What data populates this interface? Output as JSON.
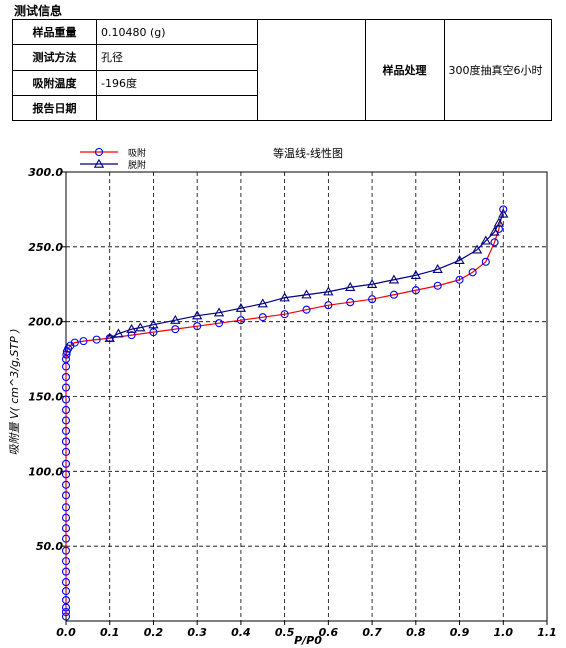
{
  "section_title": "测试信息",
  "info": {
    "rows": [
      {
        "label": "样品重量",
        "value": "0.10480 (g)"
      },
      {
        "label": "测试方法",
        "value": "孔径"
      },
      {
        "label": "吸附温度",
        "value": "-196度"
      },
      {
        "label": "报告日期",
        "value": ""
      }
    ],
    "treatment_label": "样品处理",
    "treatment_value": "300度抽真空6小时"
  },
  "chart_data": {
    "type": "line",
    "title": "等温线-线性图",
    "xlabel": "P/P0",
    "ylabel": "吸附量 V( cm^3/g,STP )",
    "xlim": [
      0.0,
      1.1
    ],
    "ylim": [
      0.0,
      300.0
    ],
    "xticks": [
      0.0,
      0.1,
      0.2,
      0.3,
      0.4,
      0.5,
      0.6,
      0.7,
      0.8,
      0.9,
      1.0,
      1.1
    ],
    "xtick_labels": [
      "0.0",
      "0.1",
      "0.2",
      "0.3",
      "0.4",
      "0.5",
      "0.6",
      "0.7",
      "0.8",
      "0.9",
      "1.0",
      "1.1"
    ],
    "yticks": [
      50.0,
      100.0,
      150.0,
      200.0,
      250.0,
      300.0
    ],
    "ytick_labels": [
      "50.0",
      "100.0",
      "150.0",
      "200.0",
      "250.0",
      "300.0"
    ],
    "grid": true,
    "legend_position": "top-left",
    "series": [
      {
        "name": "吸附",
        "color": "#ff0000",
        "marker": "circle",
        "marker_color": "#0000ff",
        "x": [
          0.0,
          0.0,
          0.0,
          0.0,
          0.0,
          0.0,
          0.0,
          0.0,
          0.0,
          0.0,
          0.0,
          0.0,
          0.0,
          0.0,
          0.0,
          0.0,
          0.0,
          0.0,
          0.0,
          0.0,
          0.0,
          0.0,
          0.0,
          0.0,
          0.0,
          0.0,
          0.0,
          0.001,
          0.002,
          0.005,
          0.01,
          0.02,
          0.04,
          0.07,
          0.1,
          0.15,
          0.2,
          0.25,
          0.3,
          0.35,
          0.4,
          0.45,
          0.5,
          0.55,
          0.6,
          0.65,
          0.7,
          0.75,
          0.8,
          0.85,
          0.9,
          0.93,
          0.96,
          0.98,
          0.99,
          1.0
        ],
        "y": [
          3,
          6,
          9,
          14,
          20,
          26,
          33,
          40,
          47,
          55,
          62,
          69,
          76,
          84,
          91,
          98,
          105,
          113,
          120,
          127,
          134,
          141,
          148,
          156,
          163,
          170,
          175,
          178,
          180,
          182,
          184,
          186,
          187,
          188,
          189,
          191,
          193,
          195,
          197,
          199,
          201,
          203,
          205,
          208,
          211,
          213,
          215,
          218,
          221,
          224,
          228,
          233,
          240,
          253,
          262,
          275
        ]
      },
      {
        "name": "脱附",
        "color": "#000080",
        "marker": "triangle",
        "marker_color": "#000080",
        "x": [
          1.0,
          0.99,
          0.98,
          0.96,
          0.94,
          0.9,
          0.85,
          0.8,
          0.75,
          0.7,
          0.65,
          0.6,
          0.55,
          0.5,
          0.45,
          0.4,
          0.35,
          0.3,
          0.25,
          0.2,
          0.17,
          0.15,
          0.12,
          0.1
        ],
        "y": [
          272,
          266,
          260,
          254,
          248,
          241,
          235,
          231,
          228,
          225,
          223,
          220,
          218,
          216,
          212,
          209,
          206,
          204,
          201,
          198,
          196,
          195,
          192,
          189
        ]
      }
    ]
  }
}
